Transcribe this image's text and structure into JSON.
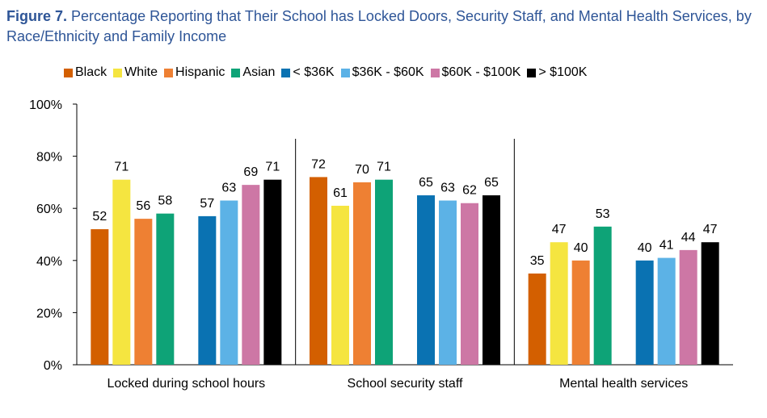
{
  "title": {
    "prefix": "Figure 7.",
    "text": "Percentage Reporting that Their School has Locked Doors, Security Staff, and Mental Health Services, by Race/Ethnicity and Family Income"
  },
  "chart_data": {
    "type": "bar",
    "categories": [
      "Locked during school hours",
      "School security staff",
      "Mental health services"
    ],
    "series": [
      {
        "name": "Black",
        "color": "#d35f00",
        "values": [
          52,
          72,
          35
        ]
      },
      {
        "name": "White",
        "color": "#f5e540",
        "values": [
          71,
          61,
          47
        ]
      },
      {
        "name": "Hispanic",
        "color": "#ee8033",
        "values": [
          56,
          70,
          40
        ]
      },
      {
        "name": "Asian",
        "color": "#0ea377",
        "values": [
          58,
          71,
          53
        ]
      },
      {
        "name": "< $36K",
        "color": "#0a72b2",
        "values": [
          57,
          65,
          40
        ]
      },
      {
        "name": "$36K - $60K",
        "color": "#5cb2e6",
        "values": [
          63,
          63,
          41
        ]
      },
      {
        "name": "$60K - $100K",
        "color": "#cd77a5",
        "values": [
          69,
          62,
          44
        ]
      },
      {
        "name": "> $100K",
        "color": "#000000",
        "values": [
          71,
          65,
          47
        ]
      }
    ],
    "ylim": [
      0,
      100
    ],
    "yticks": [
      "0%",
      "20%",
      "40%",
      "60%",
      "80%",
      "100%"
    ],
    "legend_position": "top",
    "grid": false,
    "data_labels": true
  }
}
